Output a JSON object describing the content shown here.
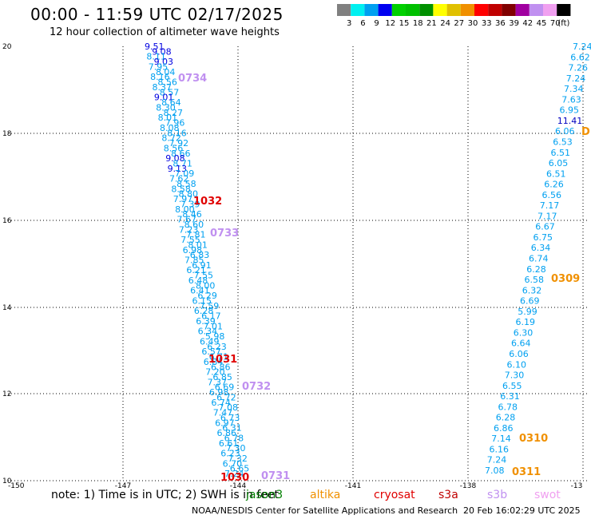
{
  "header": {
    "title": "00:00 - 11:59 UTC 02/17/2025",
    "subtitle": "12 hour collection of altimeter wave heights"
  },
  "colorbar": {
    "colors": [
      "#808080",
      "#00f0f0",
      "#00a0f0",
      "#0000f0",
      "#00d000",
      "#00c000",
      "#009000",
      "#ffff00",
      "#e0c000",
      "#f09000",
      "#ff0000",
      "#c00000",
      "#800000",
      "#a000a0",
      "#c090f0",
      "#f0a0f0",
      "#000000"
    ],
    "labels": [
      "3",
      "6",
      "9",
      "12",
      "15",
      "18",
      "21",
      "24",
      "27",
      "30",
      "33",
      "36",
      "39",
      "42",
      "45",
      "70"
    ],
    "unit": "(ft)"
  },
  "axes": {
    "x_ticks": [
      "-150",
      "-147",
      "-144",
      "-141",
      "-138",
      "-13"
    ],
    "y_ticks": [
      "20",
      "18",
      "16",
      "14",
      "12",
      "10"
    ]
  },
  "tracks": [
    {
      "label": "0734",
      "color": "#c090f0"
    },
    {
      "label": "1032",
      "color": "#e00000"
    },
    {
      "label": "0733",
      "color": "#c090f0"
    },
    {
      "label": "1031",
      "color": "#e00000"
    },
    {
      "label": "0732",
      "color": "#c090f0"
    },
    {
      "label": "1030",
      "color": "#e00000"
    },
    {
      "label": "0731",
      "color": "#c090f0"
    },
    {
      "label": "0309",
      "color": "#f09000"
    },
    {
      "label": "0310",
      "color": "#f09000"
    },
    {
      "label": "0311",
      "color": "#f09000"
    },
    {
      "label": "D",
      "color": "#f09000"
    }
  ],
  "wave_values": {
    "left_track": [
      "9.51",
      "9.08",
      "8.11",
      "9.03",
      "7.95",
      "8.04",
      "8.16",
      "8.56",
      "8.37",
      "8.57",
      "9.01",
      "8.64",
      "8.30",
      "8.27",
      "8.01",
      "7.96",
      "8.08",
      "8.16",
      "8.72",
      "7.92",
      "8.56",
      "8.66",
      "9.08",
      "8.71",
      "9.13",
      "7.09",
      "7.62",
      "8.58",
      "8.58",
      "8.80",
      "7.97",
      "7.39",
      "8.00",
      "8.46",
      "7.67",
      "8.60",
      "7.23",
      "7.81",
      "7.55",
      "8.01",
      "6.98",
      "6.83",
      "7.85",
      "6.91",
      "6.21",
      "7.55",
      "6.48",
      "8.00",
      "6.41",
      "6.29",
      "6.15",
      "7.59",
      "6.28",
      "6.17",
      "6.39",
      "7.01",
      "6.34",
      "5.98",
      "6.49",
      "6.23",
      "6.57",
      "6.71",
      "6.84",
      "6.86",
      "7.20",
      "6.85",
      "7.37",
      "6.69",
      "6.98",
      "6.72",
      "6.74",
      "7.08",
      "7.47",
      "6.73",
      "6.97",
      "6.31",
      "6.86",
      "6.78",
      "6.61",
      "7.30",
      "6.23",
      "7.32",
      "6.70",
      "6.65",
      "7.24"
    ],
    "right_track": [
      "7.24",
      "6.62",
      "7.26",
      "7.24",
      "7.34",
      "7.63",
      "6.95",
      "11.41",
      "6.06",
      "6.53",
      "6.51",
      "6.05",
      "6.51",
      "6.26",
      "6.56",
      "7.17",
      "7.17",
      "6.67",
      "6.75",
      "6.34",
      "6.74",
      "6.28",
      "6.58",
      "6.32",
      "6.69",
      "5.99",
      "6.19",
      "6.30",
      "6.64",
      "6.06",
      "6.10",
      "7.30",
      "6.55",
      "6.31",
      "6.78",
      "6.28",
      "6.86",
      "7.14",
      "6.16",
      "7.24",
      "7.08"
    ]
  },
  "legend": {
    "note": "note: 1) Time is in UTC; 2) SWH is in feet",
    "missions": [
      {
        "name": "jason3",
        "color": "#008000"
      },
      {
        "name": "altika",
        "color": "#f09000"
      },
      {
        "name": "cryosat",
        "color": "#e00000"
      },
      {
        "name": "s3a",
        "color": "#c00000"
      },
      {
        "name": "s3b",
        "color": "#c090f0"
      },
      {
        "name": "swot",
        "color": "#f0a0f0"
      }
    ]
  },
  "footer": {
    "credit": "NOAA/NESDIS Center for Satellite Applications and Research",
    "timestamp": "20 Feb 16:02:29 UTC 2025"
  }
}
